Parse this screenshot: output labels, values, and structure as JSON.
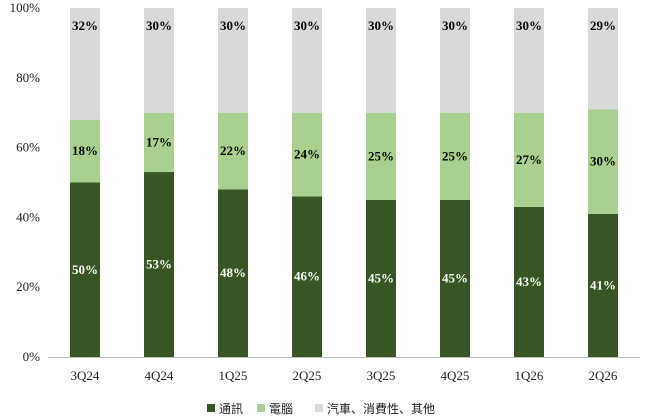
{
  "chart_data": {
    "type": "bar",
    "stacked": true,
    "categories": [
      "3Q24",
      "4Q24",
      "1Q25",
      "2Q25",
      "3Q25",
      "4Q25",
      "1Q26",
      "2Q26"
    ],
    "series": [
      {
        "name": "通訊",
        "color": "#375623",
        "label_color": "#ffffff",
        "values": [
          50,
          53,
          48,
          46,
          45,
          45,
          43,
          41
        ]
      },
      {
        "name": "電腦",
        "color": "#a9d08e",
        "label_color": "#000000",
        "values": [
          18,
          17,
          22,
          24,
          25,
          25,
          27,
          30
        ]
      },
      {
        "name": "汽車、消費性、其他",
        "color": "#d9d9d9",
        "label_color": "#000000",
        "values": [
          32,
          30,
          30,
          30,
          30,
          30,
          30,
          29
        ]
      }
    ],
    "ylim": [
      0,
      100
    ],
    "yticks": [
      "0%",
      "20%",
      "40%",
      "60%",
      "80%",
      "100%"
    ],
    "value_suffix": "%",
    "grid": false,
    "legend_position": "bottom"
  }
}
